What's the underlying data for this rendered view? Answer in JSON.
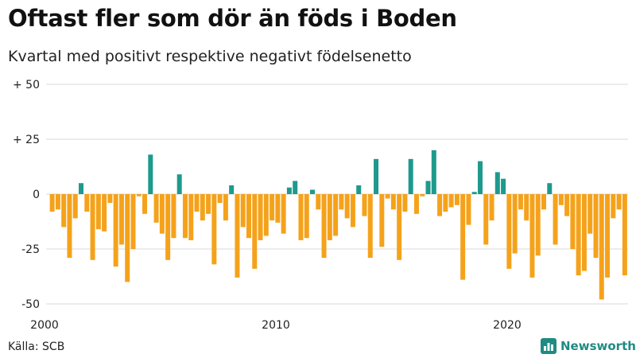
{
  "title": "Oftast fler som dör än föds i Boden",
  "subtitle": "Kvartal med positivt respektive negativt födelsenetto",
  "source": "Källa: SCB",
  "brand": {
    "name": "Newsworthy",
    "icon": "newsworthy-logo-icon"
  },
  "colors": {
    "positive": "#1e9a8c",
    "negative": "#f5a21b",
    "brand": "#1f8b83",
    "grid": "#d8d8d8"
  },
  "chart_data": {
    "type": "bar",
    "title": "Oftast fler som dör än föds i Boden",
    "subtitle": "Kvartal med positivt respektive negativt födelsenetto",
    "xlabel": "",
    "ylabel": "",
    "ylim": [
      -50,
      50
    ],
    "grid": true,
    "y_ticks": [
      {
        "value": 50,
        "label": "+ 50"
      },
      {
        "value": 25,
        "label": "+ 25"
      },
      {
        "value": 0,
        "label": "0"
      },
      {
        "value": -25,
        "label": "-25"
      },
      {
        "value": -50,
        "label": "-50"
      }
    ],
    "x_ticks": [
      {
        "year": 2000,
        "label": "2000"
      },
      {
        "year": 2010,
        "label": "2010"
      },
      {
        "year": 2020,
        "label": "2020"
      }
    ],
    "start_year": 2000,
    "start_quarter": 1,
    "values": [
      -8,
      -7,
      -15,
      -29,
      -11,
      5,
      -8,
      -30,
      -16,
      -17,
      -4,
      -33,
      -23,
      -40,
      -25,
      -1,
      -9,
      18,
      -13,
      -18,
      -30,
      -20,
      9,
      -20,
      -21,
      -8,
      -12,
      -9,
      -32,
      -4,
      -12,
      4,
      -38,
      -15,
      -20,
      -34,
      -21,
      -19,
      -12,
      -13,
      -18,
      3,
      6,
      -21,
      -20,
      2,
      -7,
      -29,
      -21,
      -19,
      -7,
      -11,
      -15,
      4,
      -10,
      -29,
      16,
      -24,
      -2,
      -7,
      -30,
      -8,
      16,
      -9,
      -1,
      6,
      20,
      -10,
      -8,
      -6,
      -5,
      -39,
      -14,
      1,
      15,
      -23,
      -12,
      10,
      7,
      -34,
      -27,
      -7,
      -12,
      -38,
      -28,
      -7,
      5,
      -23,
      -5,
      -10,
      -25,
      -37,
      -35,
      -18,
      -29,
      -48,
      -38,
      -11,
      -7,
      -37
    ]
  }
}
